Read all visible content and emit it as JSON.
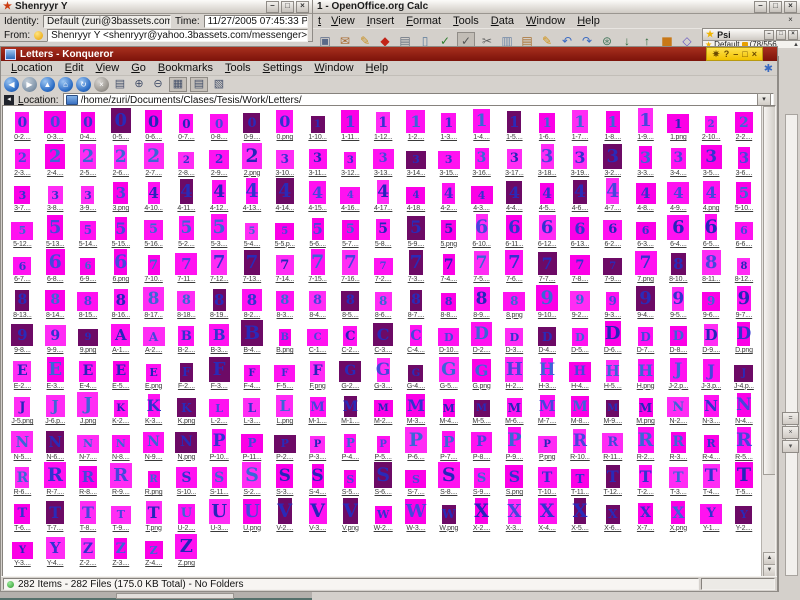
{
  "messenger": {
    "title": "Shenryyr Y",
    "identity_label": "Identity:",
    "identity_value": "Default (zuri@3bassets.com)",
    "time_label": "Time:",
    "time_value": "11/27/2005 07:45:33 PM",
    "from_label": "From:",
    "from_value": "Shenryyr Y <shenryyr@yahoo.3bassets.com/messenger>"
  },
  "calc": {
    "title": "1 - OpenOffice.org Calc",
    "menu_clipped": "t",
    "menus": [
      "View",
      "Insert",
      "Format",
      "Tools",
      "Data",
      "Window",
      "Help"
    ],
    "doc_close": "×",
    "toolbar": [
      {
        "name": "save-icon",
        "glyph": "▣",
        "color": "#5a6a88"
      },
      {
        "name": "mail-icon",
        "glyph": "✉",
        "color": "#a86a30"
      },
      {
        "name": "edit-file-icon",
        "glyph": "✎",
        "color": "#c89020"
      },
      {
        "name": "export-pdf-icon",
        "glyph": "◆",
        "color": "#c22418"
      },
      {
        "name": "print-icon",
        "glyph": "▤",
        "color": "#66707e"
      },
      {
        "name": "page-preview-icon",
        "glyph": "▯",
        "color": "#5a7a9a"
      },
      {
        "name": "spellcheck-icon",
        "glyph": "✓",
        "color": "#2e7e2e"
      },
      {
        "name": "autospell-icon",
        "glyph": "✓",
        "color": "#555555",
        "pressed": true
      },
      {
        "name": "cut-icon",
        "glyph": "✂",
        "color": "#606060"
      },
      {
        "name": "copy-icon",
        "glyph": "▥",
        "color": "#7088a8"
      },
      {
        "name": "paste-icon",
        "glyph": "▤",
        "color": "#a87030"
      },
      {
        "name": "paintbrush-icon",
        "glyph": "✎",
        "color": "#d09010"
      },
      {
        "name": "undo-icon",
        "glyph": "↶",
        "color": "#3a6ac2"
      },
      {
        "name": "redo-icon",
        "glyph": "↷",
        "color": "#3a6ac2"
      },
      {
        "name": "hyperlink-icon",
        "glyph": "⊛",
        "color": "#4a7a60"
      },
      {
        "name": "sort-ascending-icon",
        "glyph": "↓",
        "color": "#2e6a3a"
      },
      {
        "name": "sort-descending-icon",
        "glyph": "↑",
        "color": "#2e6a3a"
      },
      {
        "name": "insert-chart-icon",
        "glyph": "▆",
        "color": "#c87818"
      },
      {
        "name": "draw-icon",
        "glyph": "◇",
        "color": "#6a5ac2"
      },
      {
        "name": "find-icon",
        "glyph": "⊙",
        "color": "#555555"
      },
      {
        "name": "navigator-icon",
        "glyph": "+",
        "color": "#3a8ad2"
      }
    ],
    "window_buttons": {
      "minimize": "–",
      "maximize": "□",
      "close": "×"
    }
  },
  "psi": {
    "title": "Psi",
    "roster_item": "Default",
    "roster_count": "(78/556",
    "scroll_up": "▲",
    "window_buttons": {
      "minimize": "–",
      "maximize": "□",
      "close": "×"
    }
  },
  "konqueror": {
    "title": "Letters - Konqueror",
    "window_buttons": {
      "menu": "✷",
      "help": "?",
      "minimize": "–",
      "maximize": "□",
      "close": "×"
    },
    "menus": [
      "Location",
      "Edit",
      "View",
      "Go",
      "Bookmarks",
      "Tools",
      "Settings",
      "Window",
      "Help"
    ],
    "toolbar": [
      {
        "name": "back-icon",
        "glyph": "◀",
        "style": "rb"
      },
      {
        "name": "forward-icon",
        "glyph": "▶",
        "style": "rb dim"
      },
      {
        "name": "up-icon",
        "glyph": "▲",
        "style": "rb"
      },
      {
        "name": "home-icon",
        "glyph": "⌂",
        "style": "rb"
      },
      {
        "name": "reload-icon",
        "glyph": "↻",
        "style": "rb"
      },
      {
        "name": "stop-icon",
        "glyph": "×",
        "style": "rb gray"
      },
      {
        "name": "print-icon",
        "glyph": "▤",
        "style": "flat"
      },
      {
        "name": "zoom-in-icon",
        "glyph": "⊕",
        "style": "flat"
      },
      {
        "name": "zoom-out-icon",
        "glyph": "⊖",
        "style": "flat"
      },
      {
        "name": "icon-view-icon",
        "glyph": "▦",
        "style": "flat pressed"
      },
      {
        "name": "list-view-icon",
        "glyph": "▤",
        "style": "flat pressed"
      },
      {
        "name": "bookmark-folder-icon",
        "glyph": "▧",
        "style": "flat"
      }
    ],
    "gear_glyph": "✱",
    "location_label": "Location:",
    "location_value": "/home/zuri/Documents/Clases/Tesis/Work/Letters/",
    "status": "282 Items - 282 Files (175.0 KB Total) - No Folders",
    "grid_rows": [
      [
        "0-2....",
        "0-3....",
        "0-4....",
        "0-5....",
        "0-6....",
        "0-7....",
        "0-8....",
        "0-9....",
        "0.png",
        "1-10...",
        "1-11...",
        "1-12...",
        "1-2....",
        "1-3....",
        "1-4....",
        "1-5....",
        "1-6....",
        "1-7....",
        "1-8....",
        "1-9....",
        "1.png",
        "2-10...",
        "2-2...."
      ],
      [
        "2-3....",
        "2-4....",
        "2-5....",
        "2-6....",
        "2-7....",
        "2-8....",
        "2-9....",
        "2.png",
        "3-10...",
        "3-11...",
        "3-12...",
        "3-13...",
        "3-14...",
        "3-15...",
        "3-16...",
        "3-17...",
        "3-18...",
        "3-19...",
        "3-2....",
        "3-3....",
        "3-4....",
        "3-5....",
        "3-6...."
      ],
      [
        "3-7....",
        "3-8....",
        "3-9....",
        "3.png",
        "4-10...",
        "4-11...",
        "4-12...",
        "4-13...",
        "4-14...",
        "4-15...",
        "4-16...",
        "4-17...",
        "4-18...",
        "4-2....",
        "4-3....",
        "4-4....",
        "4-5....",
        "4-6....",
        "4-7....",
        "4-8....",
        "4-9....",
        "4.png",
        "5-10..."
      ],
      [
        "5-12...",
        "5-13...",
        "5-14...",
        "5-15...",
        "5-16...",
        "5-2....",
        "5-3....",
        "5-4....",
        "5-5.p...",
        "5-6....",
        "5-7....",
        "5-8....",
        "5-9....",
        "5.png",
        "6-10...",
        "6-11...",
        "6-12...",
        "6-13...",
        "6-2....",
        "6-3....",
        "6-4....",
        "6-5....",
        "6-6...."
      ],
      [
        "6-7....",
        "6-8....",
        "6-9....",
        "6.png",
        "7-10...",
        "7-11...",
        "7-12...",
        "7-13...",
        "7-14...",
        "7-15...",
        "7-16...",
        "7-2....",
        "7-3....",
        "7-4....",
        "7-5....",
        "7-6....",
        "7-7....",
        "7-8....",
        "7-9....",
        "7.png",
        "8-10...",
        "8-11...",
        "8-12..."
      ],
      [
        "8-13...",
        "8-14...",
        "8-15...",
        "8-16...",
        "8-17...",
        "8-18...",
        "8-19...",
        "8-2....",
        "8-3....",
        "8-4....",
        "8-5....",
        "8-6....",
        "8-7....",
        "8-8....",
        "8-9....",
        "8.png",
        "9-10...",
        "9-2....",
        "9-3....",
        "9-4....",
        "9-5....",
        "9-6....",
        "9-7...."
      ],
      [
        "9-8....",
        "9-9....",
        "9.png",
        "A-1....",
        "A-2....",
        "B-2....",
        "B-3....",
        "B-4....",
        "B.png",
        "C-1....",
        "C-2....",
        "C-3....",
        "C-4....",
        "D-10...",
        "D-2....",
        "D-3....",
        "D-4....",
        "D-5....",
        "D-6....",
        "D-7....",
        "D-8....",
        "D-9....",
        "D.png"
      ],
      [
        "E-2....",
        "E-3....",
        "E-4....",
        "E-5....",
        "E.png",
        "F-2....",
        "F-3....",
        "F-4....",
        "F-5....",
        "F.png",
        "G-2....",
        "G-3....",
        "G-4....",
        "G-5....",
        "G.png",
        "H-2....",
        "H-3....",
        "H-4....",
        "H-5....",
        "H.png",
        "J-2.p...",
        "J-3.p...",
        "J-4.p..."
      ],
      [
        "J-5.png",
        "J-6.p...",
        "J.png",
        "K-2....",
        "K-3....",
        "K.png",
        "L-2....",
        "L-3....",
        "L.png",
        "M-1....",
        "M-1....",
        "M-2....",
        "M-3....",
        "M-4....",
        "M-5....",
        "M-6....",
        "M-7....",
        "M-8....",
        "M-9....",
        "M.png",
        "N-2....",
        "N-3....",
        "N-4...."
      ],
      [
        "N-5....",
        "N-6....",
        "N-7....",
        "N-8....",
        "N-9....",
        "N.png",
        "P-10...",
        "P-11...",
        "P-2....",
        "P-3....",
        "P-4....",
        "P-5....",
        "P-6....",
        "P-7....",
        "P-8....",
        "P-9....",
        "P.png",
        "R-10...",
        "R-11...",
        "R-2....",
        "R-3....",
        "R-4....",
        "R-5...."
      ],
      [
        "R-6....",
        "R-7....",
        "R-8....",
        "R-9....",
        "R.png",
        "S-10...",
        "S-11...",
        "S-2....",
        "S-3....",
        "S-4....",
        "S-5....",
        "S-6....",
        "S-7....",
        "S-8....",
        "S-9....",
        "S.png",
        "T-10...",
        "T-11...",
        "T-12...",
        "T-2....",
        "T-3....",
        "T-4....",
        "T-5...."
      ],
      [
        "T-6....",
        "T-7....",
        "T-8....",
        "T-9....",
        "T.png",
        "U-2....",
        "U-3....",
        "U.png",
        "V-2....",
        "V-3....",
        "V.png",
        "W-2....",
        "W-3....",
        "W.png",
        "X-2....",
        "X-3....",
        "X-4....",
        "X-5....",
        "X-6....",
        "X-7....",
        "X.png",
        "Y-1....",
        "Y-2...."
      ],
      [
        "Y-3....",
        "Y-4....",
        "Z-2....",
        "Z-3....",
        "Z-4....",
        "Z.png"
      ]
    ]
  },
  "colors": {
    "thumb_magenta": "#ff12f0",
    "thumb_magenta_alt1": "#fb00e6",
    "thumb_magenta_alt2": "#ff2cf4",
    "thumb_dark": "#6d0a66",
    "glyph_blue": "#3232d0",
    "titlebar_red": "#8e1c12",
    "konq_buttons_yellow": "#f8d200"
  }
}
